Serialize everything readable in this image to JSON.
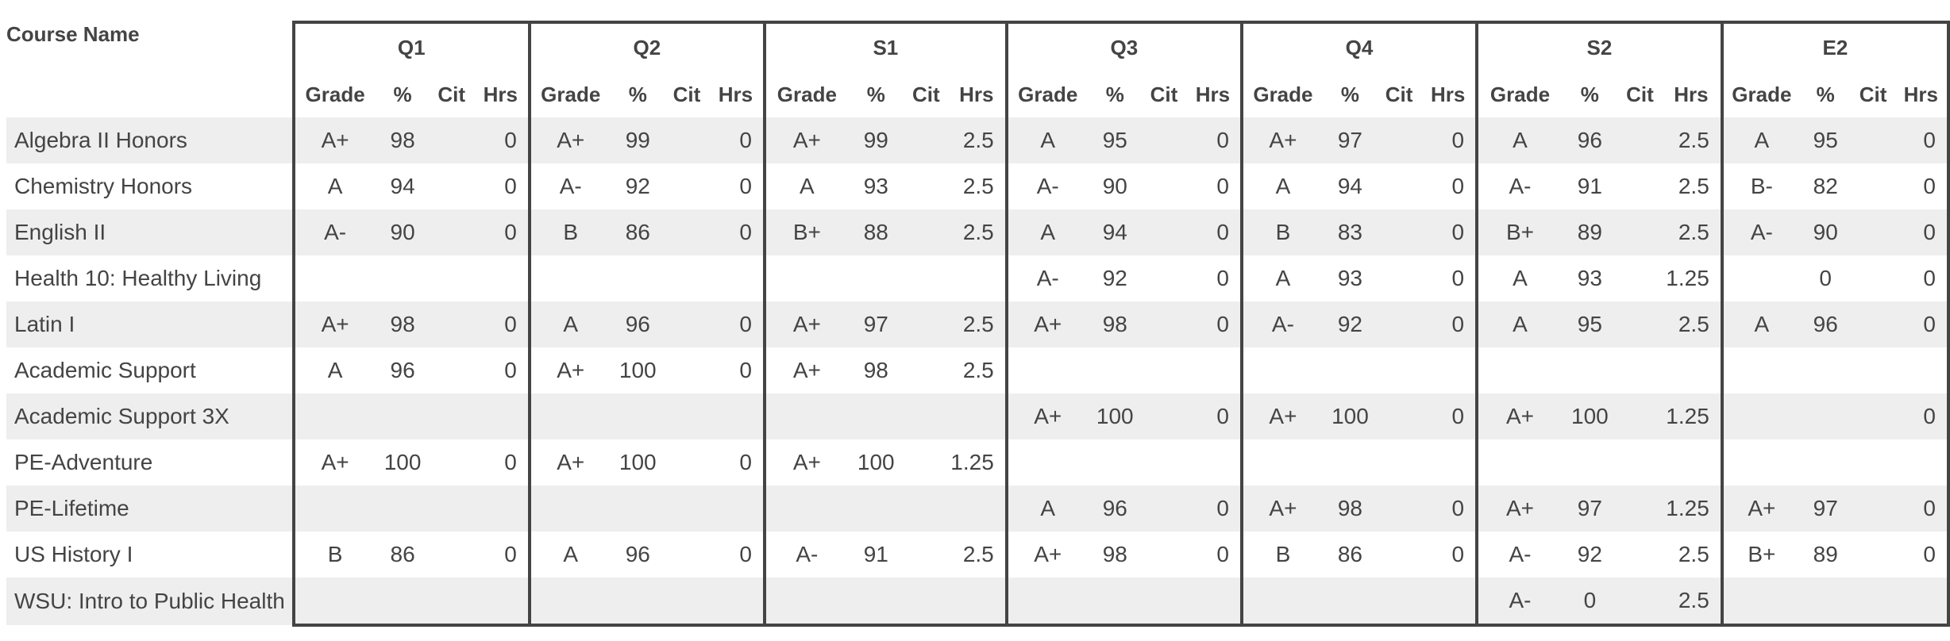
{
  "table": {
    "course_header": "Course Name",
    "sub_columns": [
      "Grade",
      "%",
      "Cit",
      "Hrs"
    ],
    "groups": [
      {
        "label": "Q1",
        "widths": [
          102,
          70,
          55,
          70
        ]
      },
      {
        "label": "Q2",
        "widths": [
          101,
          70,
          55,
          70
        ]
      },
      {
        "label": "S1",
        "widths": [
          104,
          72,
          56,
          72
        ]
      },
      {
        "label": "Q3",
        "widths": [
          101,
          70,
          55,
          70
        ]
      },
      {
        "label": "Q4",
        "widths": [
          101,
          70,
          55,
          70
        ]
      },
      {
        "label": "S2",
        "widths": [
          106,
          72,
          56,
          74
        ]
      },
      {
        "label": "E2",
        "widths": [
          97,
          66,
          56,
          66
        ]
      }
    ],
    "rows": [
      {
        "course": "Algebra II Honors",
        "cells": [
          [
            "A+",
            "98",
            "",
            "0"
          ],
          [
            "A+",
            "99",
            "",
            "0"
          ],
          [
            "A+",
            "99",
            "",
            "2.5"
          ],
          [
            "A",
            "95",
            "",
            "0"
          ],
          [
            "A+",
            "97",
            "",
            "0"
          ],
          [
            "A",
            "96",
            "",
            "2.5"
          ],
          [
            "A",
            "95",
            "",
            "0"
          ]
        ]
      },
      {
        "course": "Chemistry Honors",
        "cells": [
          [
            "A",
            "94",
            "",
            "0"
          ],
          [
            "A-",
            "92",
            "",
            "0"
          ],
          [
            "A",
            "93",
            "",
            "2.5"
          ],
          [
            "A-",
            "90",
            "",
            "0"
          ],
          [
            "A",
            "94",
            "",
            "0"
          ],
          [
            "A-",
            "91",
            "",
            "2.5"
          ],
          [
            "B-",
            "82",
            "",
            "0"
          ]
        ]
      },
      {
        "course": "English II",
        "cells": [
          [
            "A-",
            "90",
            "",
            "0"
          ],
          [
            "B",
            "86",
            "",
            "0"
          ],
          [
            "B+",
            "88",
            "",
            "2.5"
          ],
          [
            "A",
            "94",
            "",
            "0"
          ],
          [
            "B",
            "83",
            "",
            "0"
          ],
          [
            "B+",
            "89",
            "",
            "2.5"
          ],
          [
            "A-",
            "90",
            "",
            "0"
          ]
        ]
      },
      {
        "course": "Health 10: Healthy Living",
        "cells": [
          [
            "",
            "",
            "",
            ""
          ],
          [
            "",
            "",
            "",
            ""
          ],
          [
            "",
            "",
            "",
            ""
          ],
          [
            "A-",
            "92",
            "",
            "0"
          ],
          [
            "A",
            "93",
            "",
            "0"
          ],
          [
            "A",
            "93",
            "",
            "1.25"
          ],
          [
            "",
            "0",
            "",
            "0"
          ]
        ]
      },
      {
        "course": "Latin I",
        "cells": [
          [
            "A+",
            "98",
            "",
            "0"
          ],
          [
            "A",
            "96",
            "",
            "0"
          ],
          [
            "A+",
            "97",
            "",
            "2.5"
          ],
          [
            "A+",
            "98",
            "",
            "0"
          ],
          [
            "A-",
            "92",
            "",
            "0"
          ],
          [
            "A",
            "95",
            "",
            "2.5"
          ],
          [
            "A",
            "96",
            "",
            "0"
          ]
        ]
      },
      {
        "course": "Academic Support",
        "cells": [
          [
            "A",
            "96",
            "",
            "0"
          ],
          [
            "A+",
            "100",
            "",
            "0"
          ],
          [
            "A+",
            "98",
            "",
            "2.5"
          ],
          [
            "",
            "",
            "",
            ""
          ],
          [
            "",
            "",
            "",
            ""
          ],
          [
            "",
            "",
            "",
            ""
          ],
          [
            "",
            "",
            "",
            ""
          ]
        ]
      },
      {
        "course": "Academic Support 3X",
        "cells": [
          [
            "",
            "",
            "",
            ""
          ],
          [
            "",
            "",
            "",
            ""
          ],
          [
            "",
            "",
            "",
            ""
          ],
          [
            "A+",
            "100",
            "",
            "0"
          ],
          [
            "A+",
            "100",
            "",
            "0"
          ],
          [
            "A+",
            "100",
            "",
            "1.25"
          ],
          [
            "",
            "",
            "",
            "0"
          ]
        ]
      },
      {
        "course": "PE-Adventure",
        "cells": [
          [
            "A+",
            "100",
            "",
            "0"
          ],
          [
            "A+",
            "100",
            "",
            "0"
          ],
          [
            "A+",
            "100",
            "",
            "1.25"
          ],
          [
            "",
            "",
            "",
            ""
          ],
          [
            "",
            "",
            "",
            ""
          ],
          [
            "",
            "",
            "",
            ""
          ],
          [
            "",
            "",
            "",
            ""
          ]
        ]
      },
      {
        "course": "PE-Lifetime",
        "cells": [
          [
            "",
            "",
            "",
            ""
          ],
          [
            "",
            "",
            "",
            ""
          ],
          [
            "",
            "",
            "",
            ""
          ],
          [
            "A",
            "96",
            "",
            "0"
          ],
          [
            "A+",
            "98",
            "",
            "0"
          ],
          [
            "A+",
            "97",
            "",
            "1.25"
          ],
          [
            "A+",
            "97",
            "",
            "0"
          ]
        ]
      },
      {
        "course": "US History I",
        "cells": [
          [
            "B",
            "86",
            "",
            "0"
          ],
          [
            "A",
            "96",
            "",
            "0"
          ],
          [
            "A-",
            "91",
            "",
            "2.5"
          ],
          [
            "A+",
            "98",
            "",
            "0"
          ],
          [
            "B",
            "86",
            "",
            "0"
          ],
          [
            "A-",
            "92",
            "",
            "2.5"
          ],
          [
            "B+",
            "89",
            "",
            "0"
          ]
        ]
      },
      {
        "course": "WSU: Intro to Public Health",
        "cells": [
          [
            "",
            "",
            "",
            ""
          ],
          [
            "",
            "",
            "",
            ""
          ],
          [
            "",
            "",
            "",
            ""
          ],
          [
            "",
            "",
            "",
            ""
          ],
          [
            "",
            "",
            "",
            ""
          ],
          [
            "A-",
            "0",
            "",
            "2.5"
          ],
          [
            "",
            "",
            "",
            ""
          ]
        ]
      }
    ]
  },
  "colors": {
    "text": "#444444",
    "border": "#444444",
    "row_band": "#eeeeee",
    "background": "#ffffff"
  }
}
